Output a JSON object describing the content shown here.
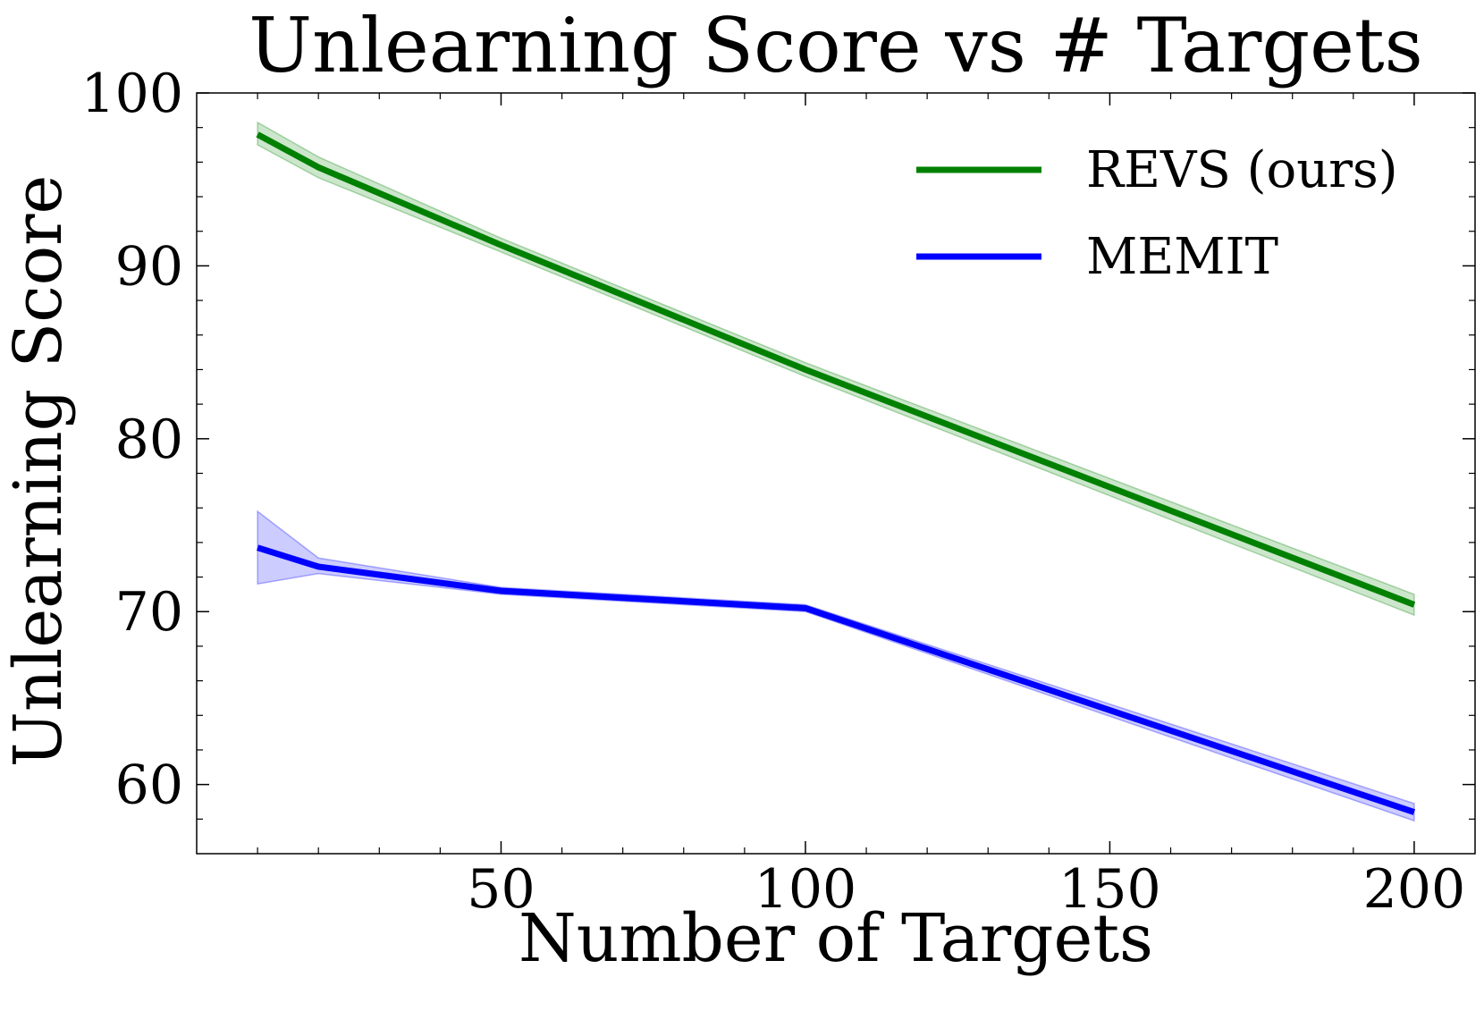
{
  "chart_data": {
    "type": "line",
    "title": "Unlearning Score vs # Targets",
    "xlabel": "Number of Targets",
    "ylabel": "Unlearning Score",
    "xlim": [
      0,
      210
    ],
    "ylim": [
      56,
      100
    ],
    "xticks": [
      50,
      100,
      150,
      200
    ],
    "xminor": [
      10,
      20,
      30,
      40,
      60,
      70,
      80,
      90,
      110,
      120,
      130,
      140,
      160,
      170,
      180,
      190
    ],
    "yticks": [
      60,
      70,
      80,
      90,
      100
    ],
    "yminor": [
      58,
      62,
      64,
      66,
      68,
      72,
      74,
      76,
      78,
      82,
      84,
      86,
      88,
      92,
      94,
      96,
      98
    ],
    "grid": false,
    "legend_position": "top-right",
    "series": [
      {
        "name": "REVS (ours)",
        "color": "#008000",
        "x": [
          10,
          20,
          50,
          100,
          200
        ],
        "y": [
          97.6,
          95.7,
          91.2,
          84.0,
          70.4
        ],
        "lower": [
          97.0,
          95.1,
          90.8,
          83.6,
          69.8
        ],
        "upper": [
          98.3,
          96.3,
          91.6,
          84.4,
          71.0
        ]
      },
      {
        "name": "MEMIT",
        "color": "#0000ff",
        "x": [
          10,
          20,
          50,
          100,
          200
        ],
        "y": [
          73.7,
          72.6,
          71.2,
          70.2,
          58.4
        ],
        "lower": [
          71.6,
          72.2,
          71.0,
          70.0,
          57.9
        ],
        "upper": [
          75.8,
          73.1,
          71.4,
          70.4,
          58.9
        ]
      }
    ]
  }
}
